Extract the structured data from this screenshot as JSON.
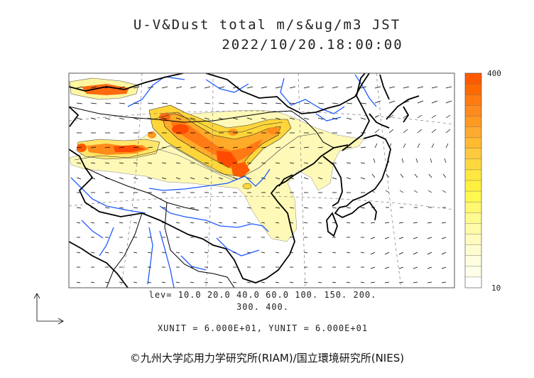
{
  "header": {
    "title_line1": "U-V&Dust total m/s&ug/m3 JST",
    "title_line2": "2022/10/20.18:00:00"
  },
  "colorbar": {
    "max_label": "400",
    "min_label": "10",
    "colors": [
      "#ff5a00",
      "#ff6a00",
      "#ff7a10",
      "#ff8a20",
      "#ff9a20",
      "#ffaa30",
      "#ffba30",
      "#ffca40",
      "#ffd840",
      "#ffe640",
      "#fff040",
      "#fff850",
      "#fff870",
      "#fffa90",
      "#fffaa8",
      "#fffbbf",
      "#fffcd0",
      "#fffde0",
      "#fffee8",
      "#ffffff"
    ]
  },
  "contour_levels": {
    "line1": "lev= 10.0 20.0 40.0 60.0 100. 150. 200.",
    "line2": "300. 400."
  },
  "vector_units": "XUNIT = 6.000E+01, YUNIT = 6.000E+01",
  "credit": "©九州大学応用力学研究所(RIAM)/国立環境研究所(NIES)",
  "map_colors": {
    "coast": "#000000",
    "river": "#1e5bff",
    "graticule": "#7a7a7a",
    "dust_light": "#fff9b8",
    "dust_mid": "#ffd63a",
    "dust_high": "#ff8c1a",
    "dust_peak": "#ff4b00"
  }
}
